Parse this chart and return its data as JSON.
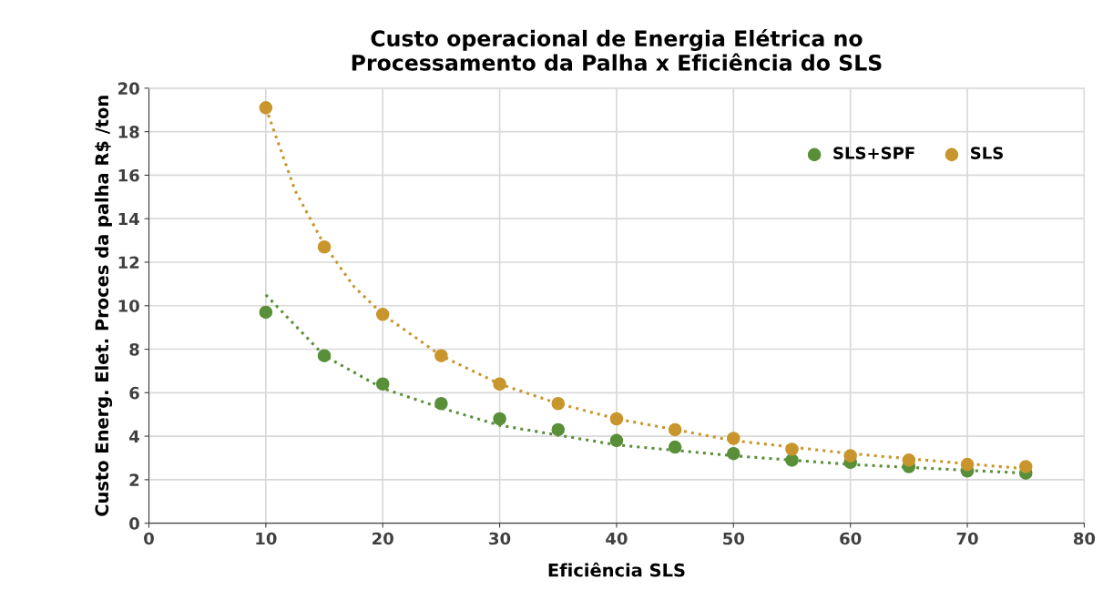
{
  "chart_data": {
    "type": "scatter",
    "title": "Custo operacional de Energia Elétrica no\nProcessamento da Palha x Eficiência do SLS",
    "xlabel": "Eficiência SLS",
    "ylabel": "Custo Energ. Elet. Proces da palha R$ /ton",
    "x": [
      10,
      15,
      20,
      25,
      30,
      35,
      40,
      45,
      50,
      55,
      60,
      65,
      70,
      75
    ],
    "series": [
      {
        "name": "SLS+SPF",
        "color": "#5a8f3a",
        "values": [
          9.7,
          7.7,
          6.4,
          5.5,
          4.8,
          4.3,
          3.8,
          3.5,
          3.2,
          2.9,
          2.8,
          2.6,
          2.4,
          2.3
        ]
      },
      {
        "name": "SLS",
        "color": "#c8962c",
        "values": [
          19.1,
          12.7,
          9.6,
          7.7,
          6.4,
          5.5,
          4.8,
          4.3,
          3.9,
          3.4,
          3.1,
          2.9,
          2.7,
          2.6
        ]
      },
      {
        "type": "line",
        "color": "#5a8f3a",
        "line_style": "dotted",
        "marker": "none",
        "x": [
          10,
          15,
          20,
          25,
          30,
          40,
          50,
          60,
          75
        ],
        "values": [
          10.5,
          7.7,
          6.2,
          5.3,
          4.5,
          3.6,
          3.1,
          2.7,
          2.3
        ]
      },
      {
        "type": "line",
        "color": "#c8962c",
        "line_style": "dotted",
        "marker": "none",
        "x": [
          10,
          12.5,
          15,
          17.5,
          20,
          25,
          30,
          35,
          40,
          50,
          60,
          75
        ],
        "values": [
          19.1,
          15.3,
          12.8,
          10.9,
          9.6,
          7.7,
          6.4,
          5.5,
          4.8,
          3.8,
          3.2,
          2.5
        ]
      }
    ],
    "marker": "circle",
    "xlim": [
      0,
      80
    ],
    "xticks": [
      0,
      10,
      20,
      30,
      40,
      50,
      60,
      70,
      80
    ],
    "ylim": [
      0,
      20
    ],
    "yticks": [
      0,
      2,
      4,
      6,
      8,
      10,
      12,
      14,
      16,
      18,
      20
    ],
    "grid": true,
    "legend": "top right"
  }
}
